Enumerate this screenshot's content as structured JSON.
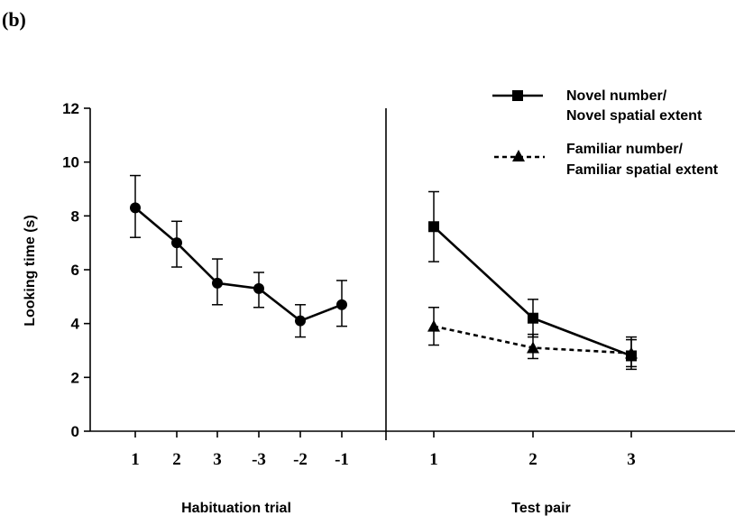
{
  "panel_label": "(b)",
  "chart_data": {
    "type": "line",
    "ylabel": "Looking time (s)",
    "ylim": [
      0,
      12
    ],
    "yticks": [
      0,
      2,
      4,
      6,
      8,
      10,
      12
    ],
    "panels": [
      {
        "xlabel": "Habituation trial",
        "categories": [
          "1",
          "2",
          "3",
          "-3",
          "-2",
          "-1"
        ],
        "series": [
          {
            "style": "solid",
            "marker": "circle",
            "values": [
              8.3,
              7.0,
              5.5,
              5.3,
              4.1,
              4.7
            ],
            "err_upper": [
              9.5,
              7.8,
              6.4,
              5.9,
              4.7,
              5.6
            ],
            "err_lower": [
              7.2,
              6.1,
              4.7,
              4.6,
              3.5,
              3.9
            ]
          }
        ]
      },
      {
        "xlabel": "Test pair",
        "categories": [
          "1",
          "2",
          "3"
        ],
        "series": [
          {
            "name": "Novel number/ Novel spatial extent",
            "style": "solid",
            "marker": "square",
            "values": [
              7.6,
              4.2,
              2.8
            ],
            "err_upper": [
              8.9,
              4.9,
              3.4
            ],
            "err_lower": [
              6.3,
              3.5,
              2.3
            ]
          },
          {
            "name": "Familiar number/ Familiar spatial extent",
            "style": "dotted",
            "marker": "triangle",
            "values": [
              3.9,
              3.1,
              2.9
            ],
            "err_upper": [
              4.6,
              3.6,
              3.5
            ],
            "err_lower": [
              3.2,
              2.7,
              2.4
            ]
          }
        ]
      }
    ],
    "legend": {
      "placement": "top-right",
      "entries": [
        {
          "line1": "Novel number/",
          "line2": "Novel spatial extent",
          "style": "solid",
          "marker": "square"
        },
        {
          "line1": "Familiar number/",
          "line2": "Familiar spatial extent",
          "style": "dotted",
          "marker": "triangle"
        }
      ]
    }
  }
}
